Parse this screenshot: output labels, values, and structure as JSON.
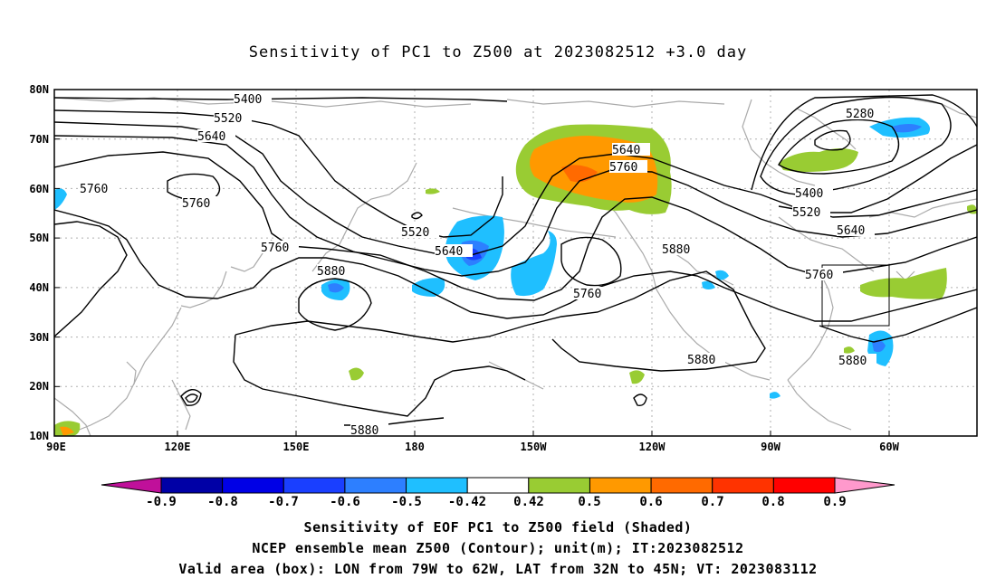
{
  "title": "Sensitivity of PC1 to Z500 at 2023082512 +3.0 day",
  "lat_ticks": [
    "80N",
    "70N",
    "60N",
    "50N",
    "40N",
    "30N",
    "20N",
    "10N"
  ],
  "lon_ticks": [
    "90E",
    "120E",
    "150E",
    "180",
    "150W",
    "120W",
    "90W",
    "60W"
  ],
  "contour_labels": [
    {
      "text": "5400",
      "key": "5400-north"
    },
    {
      "text": "5520",
      "key": "5520-north"
    },
    {
      "text": "5640",
      "key": "5640-north"
    },
    {
      "text": "5760",
      "key": "5760-west-a"
    },
    {
      "text": "5760",
      "key": "5760-west-b"
    },
    {
      "text": "5520",
      "key": "5520-pacific"
    },
    {
      "text": "5640",
      "key": "5640-pacific"
    },
    {
      "text": "5760",
      "key": "5760-japan"
    },
    {
      "text": "5880",
      "key": "5880-high"
    },
    {
      "text": "5640",
      "key": "5640-alaska"
    },
    {
      "text": "5760",
      "key": "5760-alaska"
    },
    {
      "text": "5760",
      "key": "5760-low"
    },
    {
      "text": "5880",
      "key": "5880-na"
    },
    {
      "text": "5880",
      "key": "5880-mex"
    },
    {
      "text": "5880",
      "key": "5880-south"
    },
    {
      "text": "5280",
      "key": "5280-hudson"
    },
    {
      "text": "5400",
      "key": "5400-east"
    },
    {
      "text": "5520",
      "key": "5520-east"
    },
    {
      "text": "5640",
      "key": "5640-east"
    },
    {
      "text": "5760",
      "key": "5760-east"
    },
    {
      "text": "5880",
      "key": "5880-atl"
    }
  ],
  "colorbar": {
    "labels": [
      "-0.9",
      "-0.8",
      "-0.7",
      "-0.6",
      "-0.5",
      "-0.42",
      "0.42",
      "0.5",
      "0.6",
      "0.7",
      "0.8",
      "0.9"
    ],
    "colors": {
      "low_triangle": "#c0109a",
      "bins": [
        "#0000a6",
        "#0000e6",
        "#1a3fff",
        "#2d7fff",
        "#1fbfff",
        "#ffffff",
        "#99cc33",
        "#ff9900",
        "#ff6a00",
        "#ff3300",
        "#ff0000"
      ],
      "high_triangle": "#ff99cc"
    }
  },
  "valid_box": {
    "lon_west": "79W",
    "lon_east": "62W",
    "lat_south": "32N",
    "lat_north": "45N"
  },
  "captions": [
    "Sensitivity of EOF PC1 to Z500 field (Shaded)",
    "NCEP ensemble mean Z500 (Contour); unit(m); IT:2023082512",
    "Valid area (box): LON from 79W to 62W, LAT from 32N to 45N; VT: 2023083112"
  ]
}
